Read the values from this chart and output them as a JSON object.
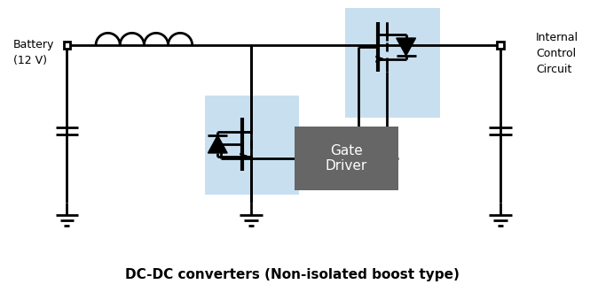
{
  "title": "DC-DC converters (Non-isolated boost type)",
  "battery_label": "Battery\n(12 V)",
  "output_label": "Internal\nControl\nCircuit",
  "gate_driver_label": "Gate\nDriver",
  "bg_color": "#ffffff",
  "line_color": "#000000",
  "highlight_color": "#c8dff0",
  "gate_driver_color": "#666666",
  "gate_driver_text_color": "#ffffff",
  "lw": 2.0,
  "fig_width": 6.65,
  "fig_height": 3.3,
  "dpi": 100
}
